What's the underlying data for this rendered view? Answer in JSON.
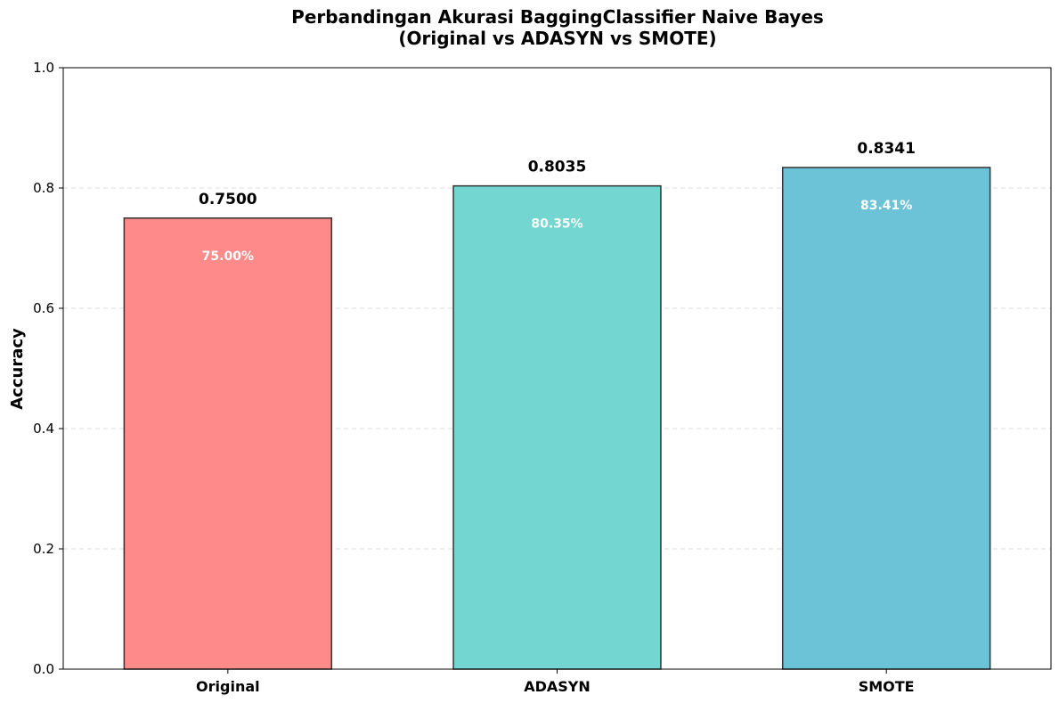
{
  "chart_data": {
    "type": "bar",
    "title_lines": [
      "Perbandingan Akurasi BaggingClassifier Naive Bayes",
      "(Original vs ADASYN vs SMOTE)"
    ],
    "xlabel": "",
    "ylabel": "Accuracy",
    "ylim": [
      0,
      1.0
    ],
    "yticks": [
      "0.0",
      "0.2",
      "0.4",
      "0.6",
      "0.8",
      "1.0"
    ],
    "ytick_values": [
      0,
      0.2,
      0.4,
      0.6,
      0.8,
      1.0
    ],
    "grid": "y-dashed",
    "categories": [
      "Original",
      "ADASYN",
      "SMOTE"
    ],
    "values": [
      0.75,
      0.8035,
      0.8341
    ],
    "value_labels": [
      "0.7500",
      "0.8035",
      "0.8341"
    ],
    "percent_labels": [
      "75.00%",
      "80.35%",
      "83.41%"
    ],
    "colors": [
      "#ff8a8a",
      "#74d6d0",
      "#6cc3d8"
    ],
    "edge_color": "#333333"
  }
}
